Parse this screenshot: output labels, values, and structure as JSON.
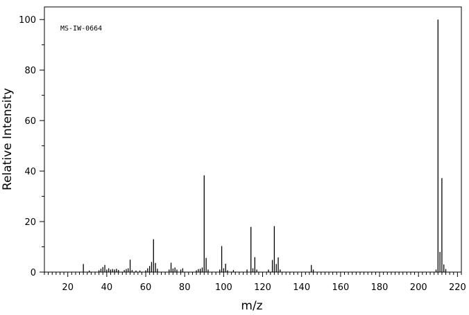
{
  "chart_data": {
    "type": "bar",
    "title": "",
    "annotation": "MS-IW-0664",
    "xlabel": "m/z",
    "ylabel": "Relative Intensity",
    "xlim": [
      8,
      222
    ],
    "ylim": [
      0,
      105
    ],
    "x_ticks": [
      20,
      40,
      60,
      80,
      100,
      120,
      140,
      160,
      180,
      200,
      220
    ],
    "y_ticks": [
      0,
      20,
      40,
      60,
      80,
      100
    ],
    "x_minor_step": 2,
    "y_minor_step": 10,
    "grid": false,
    "legend": "none",
    "bar_color": "#000000",
    "peaks": [
      {
        "x": 28,
        "y": 3.2
      },
      {
        "x": 31,
        "y": 0.6
      },
      {
        "x": 36,
        "y": 0.7
      },
      {
        "x": 37,
        "y": 1.3
      },
      {
        "x": 38,
        "y": 2.0
      },
      {
        "x": 39,
        "y": 2.8
      },
      {
        "x": 40,
        "y": 1.0
      },
      {
        "x": 41,
        "y": 1.5
      },
      {
        "x": 42,
        "y": 1.0
      },
      {
        "x": 43,
        "y": 1.2
      },
      {
        "x": 44,
        "y": 1.0
      },
      {
        "x": 45,
        "y": 1.3
      },
      {
        "x": 46,
        "y": 0.8
      },
      {
        "x": 49,
        "y": 0.8
      },
      {
        "x": 50,
        "y": 1.2
      },
      {
        "x": 51,
        "y": 1.5
      },
      {
        "x": 52,
        "y": 4.9
      },
      {
        "x": 53,
        "y": 0.8
      },
      {
        "x": 55,
        "y": 0.6
      },
      {
        "x": 57,
        "y": 0.6
      },
      {
        "x": 60,
        "y": 0.7
      },
      {
        "x": 61,
        "y": 1.5
      },
      {
        "x": 62,
        "y": 2.4
      },
      {
        "x": 63,
        "y": 4.0
      },
      {
        "x": 64,
        "y": 13.0
      },
      {
        "x": 65,
        "y": 3.6
      },
      {
        "x": 66,
        "y": 1.3
      },
      {
        "x": 72,
        "y": 1.0
      },
      {
        "x": 73,
        "y": 3.7
      },
      {
        "x": 74,
        "y": 1.4
      },
      {
        "x": 75,
        "y": 1.8
      },
      {
        "x": 76,
        "y": 1.0
      },
      {
        "x": 78,
        "y": 1.0
      },
      {
        "x": 79,
        "y": 1.5
      },
      {
        "x": 86,
        "y": 0.7
      },
      {
        "x": 87,
        "y": 1.2
      },
      {
        "x": 88,
        "y": 1.3
      },
      {
        "x": 89,
        "y": 1.8
      },
      {
        "x": 90,
        "y": 38.3
      },
      {
        "x": 91,
        "y": 5.6
      },
      {
        "x": 92,
        "y": 1.0
      },
      {
        "x": 98,
        "y": 1.0
      },
      {
        "x": 99,
        "y": 10.3
      },
      {
        "x": 100,
        "y": 1.5
      },
      {
        "x": 101,
        "y": 3.3
      },
      {
        "x": 102,
        "y": 0.7
      },
      {
        "x": 105,
        "y": 0.8
      },
      {
        "x": 112,
        "y": 1.0
      },
      {
        "x": 114,
        "y": 17.9
      },
      {
        "x": 115,
        "y": 1.5
      },
      {
        "x": 116,
        "y": 5.9
      },
      {
        "x": 117,
        "y": 1.0
      },
      {
        "x": 123,
        "y": 1.0
      },
      {
        "x": 125,
        "y": 4.8
      },
      {
        "x": 126,
        "y": 18.2
      },
      {
        "x": 127,
        "y": 3.2
      },
      {
        "x": 128,
        "y": 5.8
      },
      {
        "x": 129,
        "y": 1.0
      },
      {
        "x": 145,
        "y": 2.8
      },
      {
        "x": 146,
        "y": 1.0
      },
      {
        "x": 209,
        "y": 1.0
      },
      {
        "x": 210,
        "y": 100.0
      },
      {
        "x": 211,
        "y": 8.0
      },
      {
        "x": 212,
        "y": 37.2
      },
      {
        "x": 213,
        "y": 3.0
      },
      {
        "x": 214,
        "y": 1.2
      }
    ]
  }
}
